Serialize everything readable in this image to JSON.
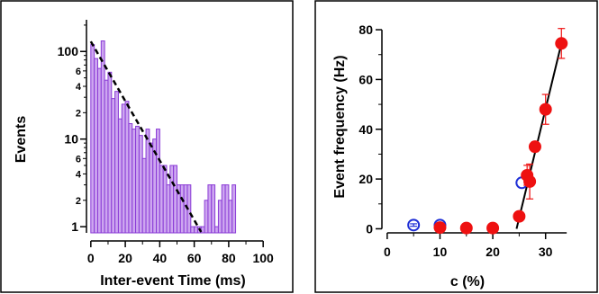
{
  "chart_data": [
    {
      "type": "bar",
      "xlabel": "Inter-event Time (ms)",
      "ylabel": "Events",
      "xlim": [
        -2,
        102
      ],
      "ylim": [
        0.85,
        230
      ],
      "yscale": "log",
      "bar_color": "#cda6f0",
      "bar_edge_color": "#8a3bd6",
      "x_ticks": [
        0,
        20,
        40,
        60,
        80,
        100
      ],
      "y_major_ticks": [
        {
          "value": 1,
          "label": "1"
        },
        {
          "value": 10,
          "label": "10"
        },
        {
          "value": 100,
          "label": "100"
        }
      ],
      "y_minor_ticks": [
        {
          "value": 2,
          "label": "2"
        },
        {
          "value": 4,
          "label": "4"
        },
        {
          "value": 6,
          "label": "6"
        },
        {
          "value": 20,
          "label": "2"
        },
        {
          "value": 40,
          "label": "4"
        },
        {
          "value": 60,
          "label": "6"
        }
      ],
      "bins": [
        {
          "x": 0,
          "value": 120
        },
        {
          "x": 2,
          "value": 83
        },
        {
          "x": 4,
          "value": 64
        },
        {
          "x": 6,
          "value": 132
        },
        {
          "x": 8,
          "value": 47
        },
        {
          "x": 10,
          "value": 58
        },
        {
          "x": 12,
          "value": 29
        },
        {
          "x": 14,
          "value": 35
        },
        {
          "x": 16,
          "value": 17
        },
        {
          "x": 18,
          "value": 25
        },
        {
          "x": 20,
          "value": 27
        },
        {
          "x": 22,
          "value": 15
        },
        {
          "x": 24,
          "value": 13
        },
        {
          "x": 26,
          "value": 14
        },
        {
          "x": 28,
          "value": 11
        },
        {
          "x": 30,
          "value": 6
        },
        {
          "x": 32,
          "value": 13
        },
        {
          "x": 34,
          "value": 9
        },
        {
          "x": 36,
          "value": 10
        },
        {
          "x": 38,
          "value": 13
        },
        {
          "x": 40,
          "value": 5
        },
        {
          "x": 42,
          "value": 5
        },
        {
          "x": 44,
          "value": 3
        },
        {
          "x": 46,
          "value": 5
        },
        {
          "x": 48,
          "value": 5
        },
        {
          "x": 50,
          "value": 3
        },
        {
          "x": 52,
          "value": 3
        },
        {
          "x": 54,
          "value": 3
        },
        {
          "x": 56,
          "value": 3
        },
        {
          "x": 58,
          "value": 1
        },
        {
          "x": 60,
          "value": 1
        },
        {
          "x": 62,
          "value": 1
        },
        {
          "x": 64,
          "value": 1
        },
        {
          "x": 66,
          "value": 2
        },
        {
          "x": 68,
          "value": 3
        },
        {
          "x": 70,
          "value": 3
        },
        {
          "x": 72,
          "value": 1
        },
        {
          "x": 74,
          "value": 2
        },
        {
          "x": 76,
          "value": 3
        },
        {
          "x": 78,
          "value": 3
        },
        {
          "x": 80,
          "value": 2
        },
        {
          "x": 82,
          "value": 3
        }
      ],
      "bin_width": 2,
      "fit": {
        "style": "dashed",
        "color": "#000000",
        "x": [
          0,
          64
        ],
        "y": [
          130,
          0.87
        ]
      }
    },
    {
      "type": "scatter",
      "xlabel": "c (%)",
      "ylabel": "Event frequency (Hz)",
      "xlim": [
        -1,
        35
      ],
      "ylim": [
        -2,
        84
      ],
      "x_ticks": [
        0,
        10,
        20,
        30
      ],
      "y_ticks": [
        0,
        20,
        40,
        60,
        80
      ],
      "series": [
        {
          "marker": "open-circle",
          "color": "#1f2fd6",
          "points": [
            {
              "x": 5,
              "y": 1.5,
              "err": 0.5
            },
            {
              "x": 10,
              "y": 1.5,
              "err": 0.5
            },
            {
              "x": 25.5,
              "y": 18.5,
              "err": 0
            }
          ]
        },
        {
          "marker": "filled-circle",
          "color": "#ee1111",
          "points": [
            {
              "x": 10,
              "y": 0.5,
              "err": 0
            },
            {
              "x": 15,
              "y": 0.3,
              "err": 0
            },
            {
              "x": 20,
              "y": 0.3,
              "err": 0
            },
            {
              "x": 25,
              "y": 5,
              "err": 1.5
            },
            {
              "x": 26.5,
              "y": 21.5,
              "err": 4
            },
            {
              "x": 27,
              "y": 19,
              "err": 7
            },
            {
              "x": 28,
              "y": 33,
              "err": 2
            },
            {
              "x": 30,
              "y": 48,
              "err": 6
            },
            {
              "x": 33,
              "y": 74.5,
              "err": 6
            }
          ]
        }
      ],
      "fit": {
        "style": "solid",
        "color": "#000000",
        "x": [
          24.5,
          33
        ],
        "y": [
          0,
          74.5
        ]
      }
    }
  ]
}
